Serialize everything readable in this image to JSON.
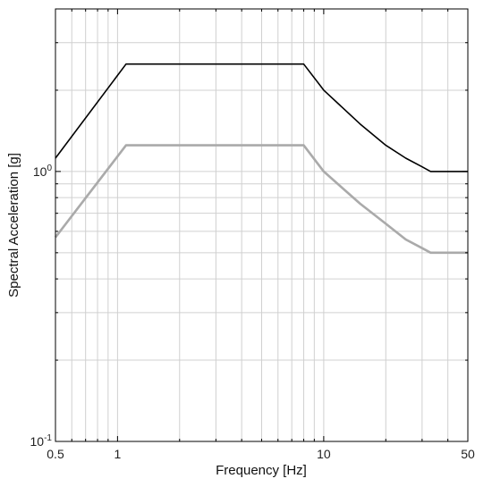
{
  "chart_data": {
    "type": "line",
    "xlabel": "Frequency [Hz]",
    "ylabel": "Spectral Acceleration [g]",
    "xscale": "log",
    "yscale": "log",
    "xlim": [
      0.5,
      50
    ],
    "ylim": [
      0.1,
      4
    ],
    "grid": true,
    "legend": "none",
    "x_ticks": [
      {
        "value": 0.5,
        "label": "0.5"
      },
      {
        "value": 1,
        "label": "1"
      },
      {
        "value": 10,
        "label": "10"
      },
      {
        "value": 50,
        "label": "50"
      }
    ],
    "y_ticks": [
      {
        "value": 0.1,
        "base": "10",
        "exp": "-1"
      },
      {
        "value": 1,
        "base": "10",
        "exp": "0"
      }
    ],
    "series": [
      {
        "color": "#000000",
        "x": [
          0.5,
          1.1,
          8,
          10,
          15,
          20,
          25,
          30,
          33,
          50
        ],
        "y": [
          1.12,
          2.5,
          2.5,
          2.0,
          1.5,
          1.25,
          1.12,
          1.04,
          1.0,
          1.0
        ]
      },
      {
        "color": "#aaaaaa",
        "x": [
          0.5,
          1.1,
          8,
          10,
          15,
          20,
          25,
          30,
          33,
          50
        ],
        "y": [
          0.57,
          1.25,
          1.25,
          1.0,
          0.76,
          0.64,
          0.56,
          0.52,
          0.5,
          0.5
        ]
      }
    ]
  }
}
